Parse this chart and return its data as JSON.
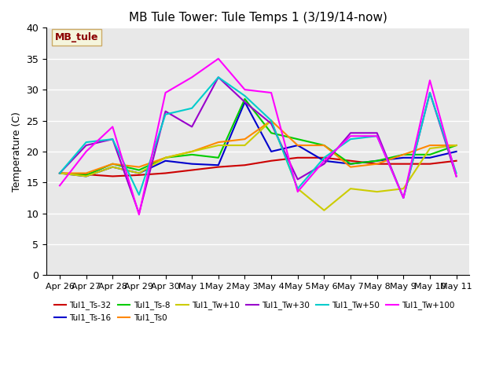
{
  "title": "MB Tule Tower: Tule Temps 1 (3/19/14-now)",
  "ylabel": "Temperature (C)",
  "xlabel": "",
  "ylim": [
    0,
    40
  ],
  "yticks": [
    0,
    5,
    10,
    15,
    20,
    25,
    30,
    35,
    40
  ],
  "background_color": "#e8e8e8",
  "plot_bg_color": "#e8e8e8",
  "fig_bg_color": "#ffffff",
  "grid_color": "#ffffff",
  "annotation_text": "MB_tule",
  "annotation_color": "#8b0000",
  "annotation_bg": "#f5f5dc",
  "legend_entries": [
    {
      "label": "Tul1_Ts-32",
      "color": "#cc0000"
    },
    {
      "label": "Tul1_Ts-16",
      "color": "#0000cc"
    },
    {
      "label": "Tul1_Ts-8",
      "color": "#00cc00"
    },
    {
      "label": "Tul1_Ts0",
      "color": "#ff8800"
    },
    {
      "label": "Tul1_Tw+10",
      "color": "#cccc00"
    },
    {
      "label": "Tul1_Tw+30",
      "color": "#9900cc"
    },
    {
      "label": "Tul1_Tw+50",
      "color": "#00cccc"
    },
    {
      "label": "Tul1_Tw+100",
      "color": "#ff00ff"
    }
  ],
  "x_labels": [
    "Apr 26",
    "Apr 27",
    "Apr 28",
    "Apr 29",
    "Apr 30",
    "May 1",
    "May 2",
    "May 3",
    "May 4",
    "May 5",
    "May 6",
    "May 7",
    "May 8",
    "May 9",
    "May 10",
    "May 11"
  ],
  "x_values": [
    0,
    1,
    2,
    3,
    4,
    5,
    6,
    7,
    8,
    9,
    10,
    11,
    12,
    13,
    14,
    15
  ],
  "series": {
    "Tul1_Ts-32": [
      16.5,
      16.3,
      16.0,
      16.2,
      16.5,
      17.0,
      17.5,
      17.8,
      18.5,
      19.0,
      19.0,
      18.5,
      18.0,
      18.0,
      18.0,
      18.5
    ],
    "Tul1_Ts-16": [
      16.5,
      16.0,
      17.5,
      16.5,
      18.5,
      18.0,
      17.8,
      28.0,
      20.0,
      21.0,
      18.5,
      18.0,
      18.5,
      19.0,
      19.0,
      20.0
    ],
    "Tul1_Ts-8": [
      16.5,
      16.2,
      18.0,
      17.0,
      19.0,
      19.5,
      19.0,
      28.5,
      23.0,
      22.0,
      21.0,
      18.0,
      18.5,
      19.5,
      19.5,
      21.0
    ],
    "Tul1_Ts0": [
      16.5,
      16.5,
      18.0,
      17.5,
      19.0,
      20.0,
      21.5,
      22.0,
      25.0,
      21.0,
      21.0,
      17.5,
      18.0,
      19.5,
      21.0,
      21.0
    ],
    "Tul1_Tw+10": [
      16.5,
      16.0,
      17.5,
      16.5,
      19.0,
      20.0,
      21.0,
      21.0,
      25.0,
      14.0,
      10.5,
      14.0,
      13.5,
      14.0,
      20.5,
      21.0
    ],
    "Tul1_Tw+30": [
      16.5,
      21.0,
      22.0,
      10.0,
      26.5,
      24.0,
      32.0,
      28.0,
      24.5,
      15.5,
      18.0,
      23.0,
      23.0,
      12.5,
      29.5,
      16.0
    ],
    "Tul1_Tw+50": [
      16.5,
      21.5,
      22.0,
      13.0,
      26.0,
      27.0,
      32.0,
      29.0,
      25.0,
      14.0,
      19.0,
      22.0,
      22.5,
      12.5,
      29.5,
      16.5
    ],
    "Tul1_Tw+100": [
      14.5,
      20.0,
      24.0,
      9.8,
      29.5,
      32.0,
      35.0,
      30.0,
      29.5,
      13.5,
      18.5,
      22.5,
      22.5,
      12.5,
      31.5,
      16.0
    ]
  }
}
